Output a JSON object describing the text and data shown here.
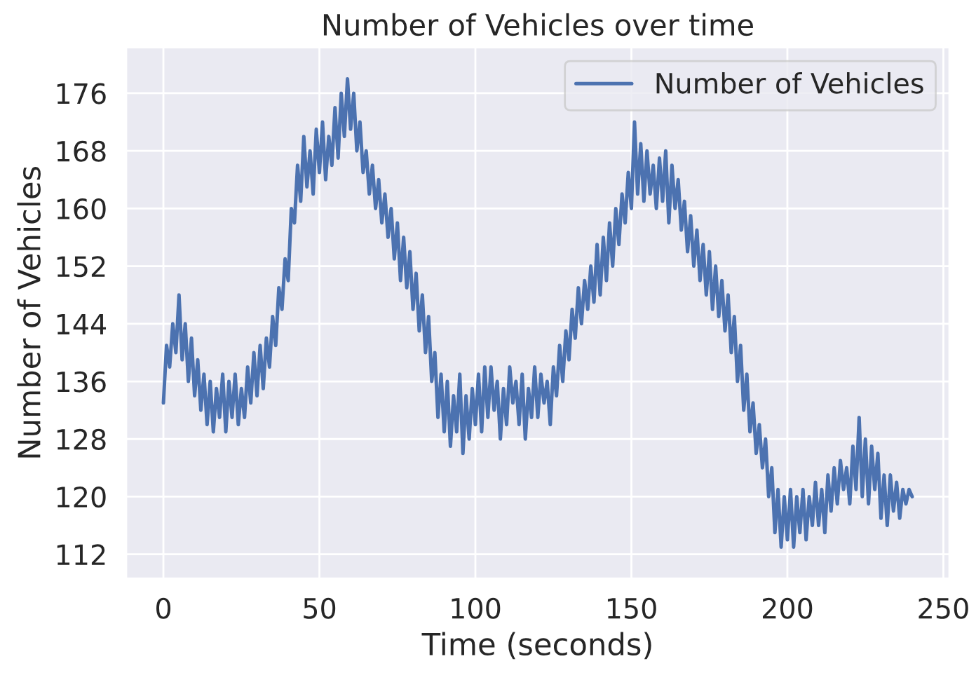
{
  "chart_data": {
    "type": "line",
    "title": "Number of Vehicles over time",
    "xlabel": "Time (seconds)",
    "ylabel": "Number of Vehicles",
    "x": [
      0,
      1,
      2,
      3,
      4,
      5,
      6,
      7,
      8,
      9,
      10,
      11,
      12,
      13,
      14,
      15,
      16,
      17,
      18,
      19,
      20,
      21,
      22,
      23,
      24,
      25,
      26,
      27,
      28,
      29,
      30,
      31,
      32,
      33,
      34,
      35,
      36,
      37,
      38,
      39,
      40,
      41,
      42,
      43,
      44,
      45,
      46,
      47,
      48,
      49,
      50,
      51,
      52,
      53,
      54,
      55,
      56,
      57,
      58,
      59,
      60,
      61,
      62,
      63,
      64,
      65,
      66,
      67,
      68,
      69,
      70,
      71,
      72,
      73,
      74,
      75,
      76,
      77,
      78,
      79,
      80,
      81,
      82,
      83,
      84,
      85,
      86,
      87,
      88,
      89,
      90,
      91,
      92,
      93,
      94,
      95,
      96,
      97,
      98,
      99,
      100,
      101,
      102,
      103,
      104,
      105,
      106,
      107,
      108,
      109,
      110,
      111,
      112,
      113,
      114,
      115,
      116,
      117,
      118,
      119,
      120,
      121,
      122,
      123,
      124,
      125,
      126,
      127,
      128,
      129,
      130,
      131,
      132,
      133,
      134,
      135,
      136,
      137,
      138,
      139,
      140,
      141,
      142,
      143,
      144,
      145,
      146,
      147,
      148,
      149,
      150,
      151,
      152,
      153,
      154,
      155,
      156,
      157,
      158,
      159,
      160,
      161,
      162,
      163,
      164,
      165,
      166,
      167,
      168,
      169,
      170,
      171,
      172,
      173,
      174,
      175,
      176,
      177,
      178,
      179,
      180,
      181,
      182,
      183,
      184,
      185,
      186,
      187,
      188,
      189,
      190,
      191,
      192,
      193,
      194,
      195,
      196,
      197,
      198,
      199,
      200,
      201,
      202,
      203,
      204,
      205,
      206,
      207,
      208,
      209,
      210,
      211,
      212,
      213,
      214,
      215,
      216,
      217,
      218,
      219,
      220,
      221,
      222,
      223,
      224,
      225,
      226,
      227,
      228,
      229,
      230,
      231,
      232,
      233,
      234,
      235,
      236,
      237,
      238,
      239,
      240
    ],
    "series": [
      {
        "name": "Number of Vehicles",
        "color": "#4c72b0",
        "values": [
          133,
          141,
          138,
          144,
          140,
          148,
          139,
          144,
          136,
          142,
          134,
          139,
          132,
          137,
          130,
          136,
          129,
          135,
          131,
          137,
          129,
          136,
          131,
          137,
          130,
          135,
          131,
          138,
          133,
          140,
          134,
          141,
          135,
          142,
          138,
          145,
          141,
          149,
          146,
          153,
          150,
          160,
          158,
          166,
          161,
          170,
          163,
          168,
          162,
          171,
          165,
          172,
          164,
          170,
          166,
          174,
          167,
          176,
          170,
          178,
          171,
          176,
          168,
          172,
          165,
          168,
          162,
          166,
          160,
          164,
          158,
          162,
          156,
          160,
          153,
          158,
          150,
          156,
          149,
          154,
          146,
          151,
          143,
          148,
          140,
          145,
          136,
          140,
          131,
          137,
          129,
          136,
          127,
          134,
          129,
          137,
          126,
          134,
          128,
          135,
          130,
          137,
          129,
          138,
          131,
          138,
          132,
          136,
          128,
          135,
          130,
          138,
          133,
          136,
          130,
          137,
          128,
          135,
          131,
          138,
          131,
          137,
          133,
          136,
          130,
          138,
          134,
          141,
          136,
          143,
          139,
          146,
          142,
          149,
          144,
          150,
          146,
          152,
          147,
          155,
          148,
          156,
          150,
          158,
          152,
          160,
          155,
          162,
          158,
          165,
          160,
          172,
          162,
          169,
          161,
          168,
          162,
          166,
          160,
          167,
          161,
          168,
          158,
          166,
          160,
          164,
          157,
          161,
          154,
          159,
          152,
          157,
          150,
          155,
          148,
          154,
          146,
          152,
          145,
          150,
          143,
          148,
          140,
          145,
          136,
          141,
          132,
          137,
          129,
          133,
          126,
          130,
          124,
          128,
          120,
          124,
          115,
          121,
          113,
          120,
          114,
          121,
          113,
          120,
          115,
          121,
          114,
          120,
          116,
          122,
          116,
          121,
          115,
          123,
          118,
          124,
          119,
          125,
          121,
          124,
          119,
          127,
          121,
          131,
          120,
          128,
          119,
          127,
          121,
          126,
          117,
          123,
          116,
          123,
          118,
          122,
          117,
          121,
          119,
          121,
          120
        ]
      }
    ],
    "xlim": [
      -12,
      252
    ],
    "ylim": [
      108.6,
      182.4
    ],
    "xticks": [
      0,
      50,
      100,
      150,
      200,
      250
    ],
    "yticks": [
      112,
      120,
      128,
      136,
      144,
      152,
      160,
      168,
      176
    ],
    "grid": true,
    "legend": "upper right",
    "line_style": "solid"
  }
}
